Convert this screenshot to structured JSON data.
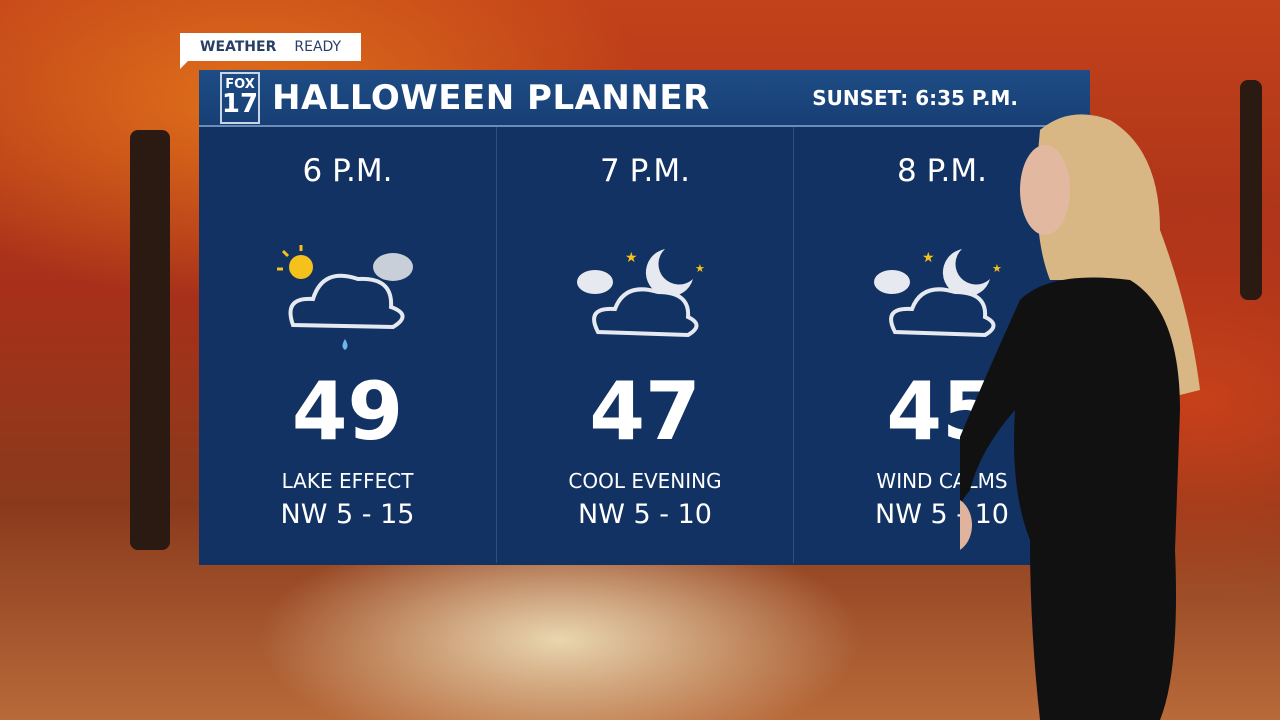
{
  "badge": {
    "weather": "WEATHER",
    "ready": "READY"
  },
  "header": {
    "logo_top": "FOX",
    "logo_num": "17",
    "title": "HALLOWEEN PLANNER",
    "sunset": "SUNSET: 6:35 P.M."
  },
  "forecast": [
    {
      "time": "6 P.M.",
      "icon": "partly-sunny-cloud-rain-drop-icon",
      "temp": "49",
      "desc": "LAKE EFFECT",
      "wind": "NW  5 - 15"
    },
    {
      "time": "7 P.M.",
      "icon": "cloud-moon-stars-icon",
      "temp": "47",
      "desc": "COOL EVENING",
      "wind": "NW  5 - 10"
    },
    {
      "time": "8 P.M.",
      "icon": "cloud-moon-stars-icon",
      "temp": "45",
      "desc": "WIND CALMS",
      "wind": "NW  5 - 10"
    }
  ],
  "colors": {
    "panel": "#123263",
    "header": "#1e4c85",
    "sun": "#f4c21a"
  }
}
